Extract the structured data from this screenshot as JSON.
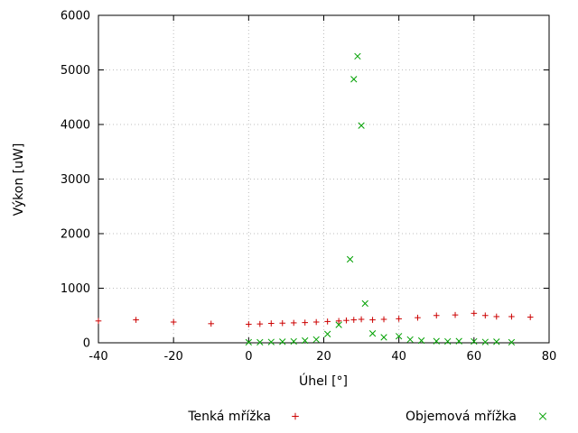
{
  "chart_data": {
    "type": "scatter",
    "title": "",
    "xlabel": "Úhel [°]",
    "ylabel": "Výkon [uW]",
    "xlim": [
      -40,
      80
    ],
    "ylim": [
      0,
      6000
    ],
    "xticks": [
      -40,
      -20,
      0,
      20,
      40,
      60,
      80
    ],
    "yticks": [
      0,
      1000,
      2000,
      3000,
      4000,
      5000,
      6000
    ],
    "grid": true,
    "legend_position": "below-plot",
    "series": [
      {
        "name": "Tenká mřížka",
        "marker": "plus",
        "color": "#cc0000",
        "points": [
          [
            -40,
            400
          ],
          [
            -30,
            420
          ],
          [
            -20,
            380
          ],
          [
            -10,
            350
          ],
          [
            0,
            340
          ],
          [
            3,
            345
          ],
          [
            6,
            355
          ],
          [
            9,
            360
          ],
          [
            12,
            365
          ],
          [
            15,
            370
          ],
          [
            18,
            380
          ],
          [
            21,
            390
          ],
          [
            24,
            400
          ],
          [
            26,
            410
          ],
          [
            28,
            420
          ],
          [
            30,
            430
          ],
          [
            33,
            420
          ],
          [
            36,
            430
          ],
          [
            40,
            440
          ],
          [
            45,
            460
          ],
          [
            50,
            500
          ],
          [
            55,
            510
          ],
          [
            60,
            540
          ],
          [
            63,
            500
          ],
          [
            66,
            480
          ],
          [
            70,
            480
          ],
          [
            75,
            470
          ]
        ]
      },
      {
        "name": "Objemová mřížka",
        "marker": "cross",
        "color": "#00a000",
        "points": [
          [
            0,
            10
          ],
          [
            3,
            10
          ],
          [
            6,
            15
          ],
          [
            9,
            20
          ],
          [
            12,
            25
          ],
          [
            15,
            40
          ],
          [
            18,
            60
          ],
          [
            21,
            160
          ],
          [
            24,
            330
          ],
          [
            27,
            1530
          ],
          [
            28,
            4830
          ],
          [
            29,
            5250
          ],
          [
            30,
            3980
          ],
          [
            31,
            720
          ],
          [
            33,
            170
          ],
          [
            36,
            100
          ],
          [
            40,
            120
          ],
          [
            43,
            60
          ],
          [
            46,
            40
          ],
          [
            50,
            30
          ],
          [
            53,
            25
          ],
          [
            56,
            30
          ],
          [
            60,
            25
          ],
          [
            63,
            15
          ],
          [
            66,
            20
          ],
          [
            70,
            10
          ]
        ]
      }
    ]
  }
}
